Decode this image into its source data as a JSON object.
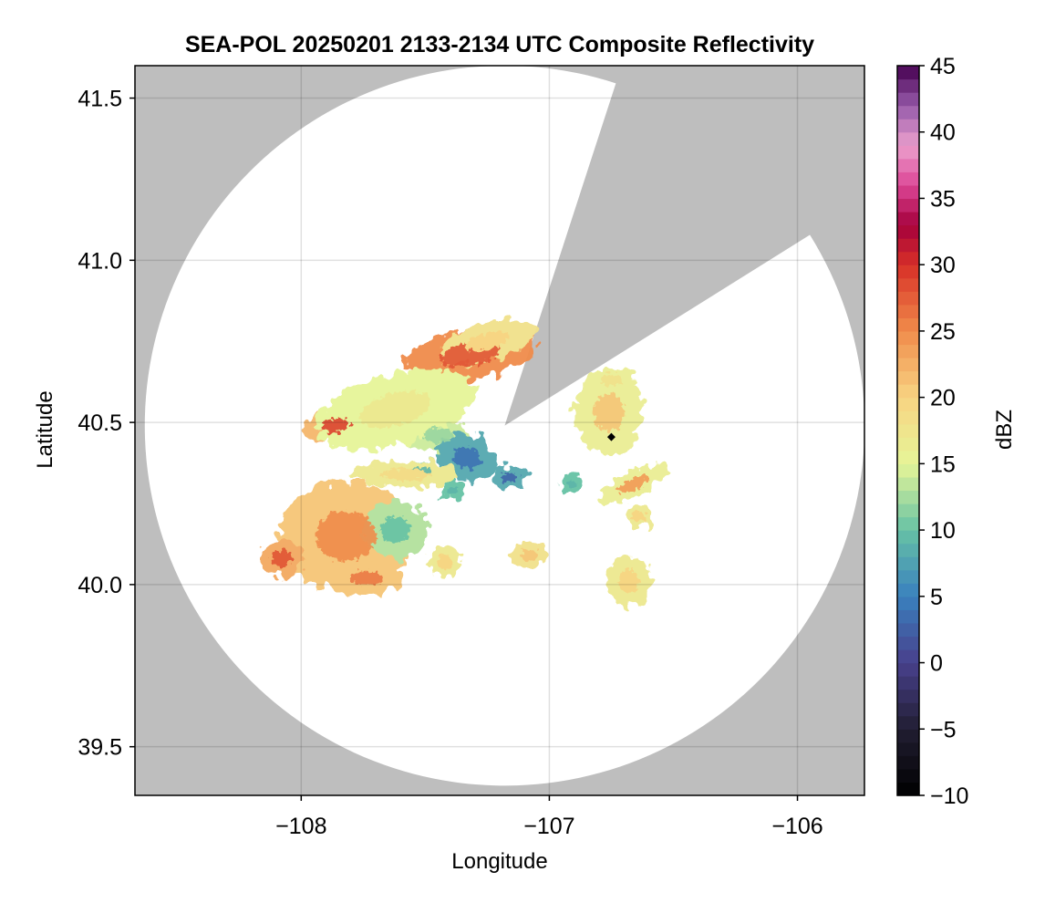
{
  "chart_data": {
    "type": "heatmap",
    "title": "SEA-POL 20250201 2133-2134 UTC Composite Reflectivity",
    "xlabel": "Longitude",
    "ylabel": "Latitude",
    "colorbar_label": "dBZ",
    "xlim": [
      -108.67,
      -105.73
    ],
    "ylim": [
      39.35,
      41.6
    ],
    "xticks": [
      -108,
      -107,
      -106
    ],
    "xtick_labels": [
      "−108",
      "−107",
      "−106"
    ],
    "yticks": [
      39.5,
      40.0,
      40.5,
      41.0,
      41.5
    ],
    "ytick_labels": [
      "39.5",
      "40.0",
      "40.5",
      "41.0",
      "41.5"
    ],
    "grid": true,
    "colorbar": {
      "range": [
        -10,
        45
      ],
      "ticks": [
        -10,
        -5,
        0,
        5,
        10,
        15,
        20,
        25,
        30,
        35,
        40,
        45
      ],
      "tick_labels": [
        "−10",
        "−5",
        "0",
        "5",
        "10",
        "15",
        "20",
        "25",
        "30",
        "35",
        "40",
        "45"
      ],
      "step": 1
    },
    "radar": {
      "center_lon": -107.18,
      "center_lat": 40.49,
      "range_lat_deg": 1.11,
      "blocked_sector_deg_from_north": [
        18,
        58
      ],
      "site_marker": {
        "lon": -106.75,
        "lat": 40.455
      }
    },
    "echoes": [
      {
        "lon": -107.32,
        "lat": 40.71,
        "rlon": 0.27,
        "rlat": 0.08,
        "rot": -10,
        "dbz": 25,
        "core_dbz": 28
      },
      {
        "lon": -107.62,
        "lat": 40.55,
        "rlon": 0.28,
        "rlat": 0.07,
        "rot": -12,
        "dbz": 20,
        "core_dbz": 28
      },
      {
        "lon": -107.86,
        "lat": 40.49,
        "rlon": 0.13,
        "rlat": 0.05,
        "rot": -8,
        "dbz": 22,
        "core_dbz": 29
      },
      {
        "lon": -107.45,
        "lat": 40.46,
        "rlon": 0.13,
        "rlat": 0.05,
        "rot": 0,
        "dbz": 14,
        "core_dbz": 12
      },
      {
        "lon": -107.33,
        "lat": 40.39,
        "rlon": 0.13,
        "rlat": 0.07,
        "rot": 15,
        "dbz": 8,
        "core_dbz": 4
      },
      {
        "lon": -107.52,
        "lat": 40.35,
        "rlon": 0.09,
        "rlat": 0.03,
        "rot": 0,
        "dbz": 11,
        "core_dbz": 9
      },
      {
        "lon": -107.39,
        "lat": 40.29,
        "rlon": 0.05,
        "rlat": 0.03,
        "rot": 0,
        "dbz": 10,
        "core_dbz": 9
      },
      {
        "lon": -107.16,
        "lat": 40.33,
        "rlon": 0.07,
        "rlat": 0.035,
        "rot": 0,
        "dbz": 8,
        "core_dbz": 3
      },
      {
        "lon": -106.91,
        "lat": 40.31,
        "rlon": 0.05,
        "rlat": 0.03,
        "rot": 0,
        "dbz": 10,
        "core_dbz": 9
      },
      {
        "lon": -106.76,
        "lat": 40.53,
        "rlon": 0.14,
        "rlat": 0.13,
        "rot": 0,
        "dbz": 16,
        "core_dbz": 21
      },
      {
        "lon": -106.66,
        "lat": 40.31,
        "rlon": 0.15,
        "rlat": 0.04,
        "rot": -25,
        "dbz": 16,
        "core_dbz": 24
      },
      {
        "lon": -106.64,
        "lat": 40.21,
        "rlon": 0.06,
        "rlat": 0.035,
        "rot": 0,
        "dbz": 17,
        "core_dbz": 20
      },
      {
        "lon": -106.68,
        "lat": 40.01,
        "rlon": 0.09,
        "rlat": 0.08,
        "rot": 0,
        "dbz": 17,
        "core_dbz": 20
      },
      {
        "lon": -107.82,
        "lat": 40.15,
        "rlon": 0.27,
        "rlat": 0.17,
        "rot": 0,
        "dbz": 21,
        "core_dbz": 25
      },
      {
        "lon": -107.62,
        "lat": 40.17,
        "rlon": 0.13,
        "rlat": 0.09,
        "rot": 0,
        "dbz": 13,
        "core_dbz": 10
      },
      {
        "lon": -108.08,
        "lat": 40.08,
        "rlon": 0.09,
        "rlat": 0.06,
        "rot": 0,
        "dbz": 23,
        "core_dbz": 28
      },
      {
        "lon": -107.74,
        "lat": 40.02,
        "rlon": 0.15,
        "rlat": 0.05,
        "rot": 0,
        "dbz": 21,
        "core_dbz": 26
      },
      {
        "lon": -107.62,
        "lat": 40.54,
        "rlon": 0.33,
        "rlat": 0.11,
        "rot": -15,
        "dbz": 15,
        "core_dbz": 17
      },
      {
        "lon": -107.42,
        "lat": 40.07,
        "rlon": 0.07,
        "rlat": 0.05,
        "rot": 0,
        "dbz": 17,
        "core_dbz": 20
      },
      {
        "lon": -107.08,
        "lat": 40.09,
        "rlon": 0.08,
        "rlat": 0.04,
        "rot": 0,
        "dbz": 18,
        "core_dbz": 21
      },
      {
        "lon": -107.58,
        "lat": 40.34,
        "rlon": 0.22,
        "rlat": 0.04,
        "rot": 0,
        "dbz": 17,
        "core_dbz": 19
      },
      {
        "lon": -107.25,
        "lat": 40.75,
        "rlon": 0.2,
        "rlat": 0.06,
        "rot": -15,
        "dbz": 18,
        "core_dbz": 20
      },
      {
        "lon": -106.75,
        "lat": 40.63,
        "rlon": 0.1,
        "rlat": 0.04,
        "rot": 0,
        "dbz": 16,
        "core_dbz": 18
      }
    ]
  }
}
